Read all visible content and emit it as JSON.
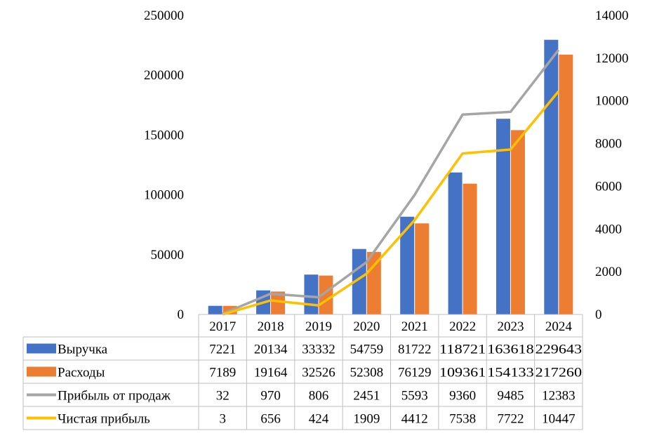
{
  "chart_data": {
    "type": "bar",
    "categories": [
      "2017",
      "2018",
      "2019",
      "2020",
      "2021",
      "2022",
      "2023",
      "2024"
    ],
    "y_left": {
      "min": 0,
      "max": 250000,
      "ticks": [
        "0",
        "50000",
        "100000",
        "150000",
        "200000",
        "250000"
      ]
    },
    "y_right": {
      "min": 0,
      "max": 14000,
      "ticks": [
        "0",
        "2000",
        "4000",
        "6000",
        "8000",
        "10000",
        "12000",
        "14000"
      ]
    },
    "series": [
      {
        "name": "Выручка",
        "kind": "bar",
        "axis": "left",
        "color": "#4472C4",
        "values": [
          7221,
          20134,
          33332,
          54759,
          81722,
          118721,
          163618,
          229643
        ],
        "labels": [
          "7221",
          "20134",
          "33332",
          "54759",
          "81722",
          "118721",
          "163618",
          "229643"
        ]
      },
      {
        "name": "Расходы",
        "kind": "bar",
        "axis": "left",
        "color": "#ED7D31",
        "values": [
          7189,
          19164,
          32526,
          52308,
          76129,
          109361,
          154133,
          217260
        ],
        "labels": [
          "7189",
          "19164",
          "32526",
          "52308",
          "76129",
          "109361",
          "154133",
          "217260"
        ]
      },
      {
        "name": "Прибыль от продаж",
        "kind": "line",
        "axis": "right",
        "color": "#A5A5A5",
        "values": [
          32,
          970,
          806,
          2451,
          5593,
          9360,
          9485,
          12383
        ],
        "labels": [
          "32",
          "970",
          "806",
          "2451",
          "5593",
          "9360",
          "9485",
          "12383"
        ]
      },
      {
        "name": "Чистая прибыль",
        "kind": "line",
        "axis": "right",
        "color": "#FFC000",
        "values": [
          3,
          656,
          424,
          1909,
          4412,
          7538,
          7722,
          10447
        ],
        "labels": [
          "3",
          "656",
          "424",
          "1909",
          "4412",
          "7538",
          "7722",
          "10447"
        ]
      }
    ],
    "gridlines": false,
    "legend": "data-table"
  }
}
